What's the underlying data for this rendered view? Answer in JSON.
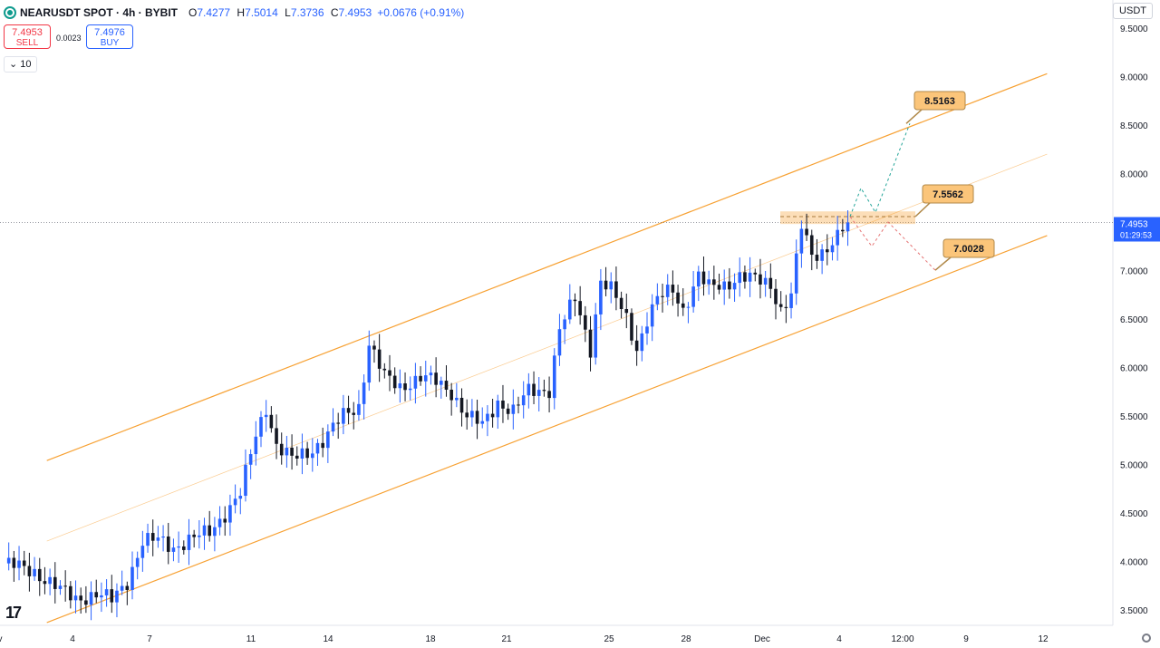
{
  "header": {
    "symbol": "NEARUSDT SPOT · 4h · BYBIT",
    "open_label": "O",
    "open": "7.4277",
    "high_label": "H",
    "high": "7.5014",
    "low_label": "L",
    "low": "7.3736",
    "close_label": "C",
    "close": "7.4953",
    "change": "+0.0676 (+0.91%)"
  },
  "trade": {
    "sell_price": "7.4953",
    "sell_label": "SELL",
    "spread": "0.0023",
    "buy_price": "7.4976",
    "buy_label": "BUY"
  },
  "indicator_toggle": "10",
  "currency": "USDT",
  "colors": {
    "up": "#2962ff",
    "down": "#131722",
    "channel": "#f7a133",
    "accent": "#2962ff"
  },
  "chart_data": {
    "type": "candlestick",
    "ylim": [
      3.35,
      9.65
    ],
    "y_ticks": [
      "3.5000",
      "4.0000",
      "4.5000",
      "5.0000",
      "5.5000",
      "6.0000",
      "6.5000",
      "7.0000",
      "7.5000",
      "8.0000",
      "8.5000",
      "9.0000",
      "9.5000"
    ],
    "x_ticks": [
      "v",
      "4",
      "7",
      "11",
      "14",
      "18",
      "21",
      "25",
      "28",
      "Dec",
      "4",
      "12:00",
      "9",
      "12"
    ],
    "last_price": "7.4953",
    "countdown": "01:29:53",
    "keypoints": [
      [
        0,
        3.98
      ],
      [
        6,
        3.9
      ],
      [
        11,
        3.7
      ],
      [
        14,
        3.62
      ],
      [
        18,
        3.66
      ],
      [
        21,
        3.6
      ],
      [
        24,
        3.8
      ],
      [
        27,
        4.2
      ],
      [
        30,
        4.22
      ],
      [
        33,
        4.15
      ],
      [
        36,
        4.22
      ],
      [
        40,
        4.3
      ],
      [
        43,
        4.5
      ],
      [
        46,
        4.7
      ],
      [
        49,
        5.3
      ],
      [
        51,
        5.6
      ],
      [
        53,
        5.2
      ],
      [
        56,
        5.05
      ],
      [
        59,
        5.12
      ],
      [
        62,
        5.25
      ],
      [
        66,
        5.5
      ],
      [
        69,
        5.6
      ],
      [
        71,
        6.25
      ],
      [
        74,
        5.9
      ],
      [
        77,
        5.8
      ],
      [
        81,
        5.9
      ],
      [
        84,
        5.85
      ],
      [
        87,
        5.75
      ],
      [
        90,
        5.5
      ],
      [
        93,
        5.4
      ],
      [
        96,
        5.65
      ],
      [
        99,
        5.55
      ],
      [
        102,
        5.75
      ],
      [
        106,
        5.78
      ],
      [
        108,
        6.4
      ],
      [
        111,
        6.7
      ],
      [
        114,
        6.2
      ],
      [
        116,
        6.9
      ],
      [
        118,
        6.8
      ],
      [
        121,
        6.5
      ],
      [
        123,
        6.2
      ],
      [
        125,
        6.5
      ],
      [
        127,
        6.7
      ],
      [
        130,
        6.8
      ],
      [
        132,
        6.6
      ],
      [
        135,
        6.95
      ],
      [
        137,
        6.82
      ],
      [
        140,
        6.85
      ],
      [
        143,
        6.95
      ],
      [
        146,
        6.9
      ],
      [
        149,
        6.85
      ],
      [
        151,
        6.6
      ],
      [
        153,
        6.75
      ],
      [
        155,
        7.45
      ],
      [
        157,
        7.15
      ],
      [
        159,
        7.2
      ],
      [
        162,
        7.35
      ],
      [
        164,
        7.4953
      ]
    ],
    "channel": {
      "upper": [
        {
          "x": "Nov 3",
          "y": 5.04
        },
        {
          "x": "Dec 12",
          "y": 9.03
        }
      ],
      "middle": [
        {
          "x": "Nov 3",
          "y": 4.21
        },
        {
          "x": "Dec 12",
          "y": 8.2
        }
      ],
      "lower": [
        {
          "x": "Nov 3",
          "y": 3.37
        },
        {
          "x": "Dec 12",
          "y": 7.36
        }
      ]
    },
    "annotations": [
      {
        "label": "8.5163",
        "value": 8.5163
      },
      {
        "label": "7.5562",
        "value": 7.5562
      },
      {
        "label": "7.0028",
        "value": 7.0028
      }
    ],
    "resistance_zone": [
      7.48,
      7.61
    ],
    "projection_up": [
      [
        7.5562,
        0
      ],
      [
        7.85,
        1
      ],
      [
        7.6,
        2
      ],
      [
        8.5163,
        3
      ]
    ],
    "projection_down": [
      [
        7.5562,
        0
      ],
      [
        7.25,
        1
      ],
      [
        7.5,
        2
      ],
      [
        7.0028,
        3
      ]
    ]
  }
}
